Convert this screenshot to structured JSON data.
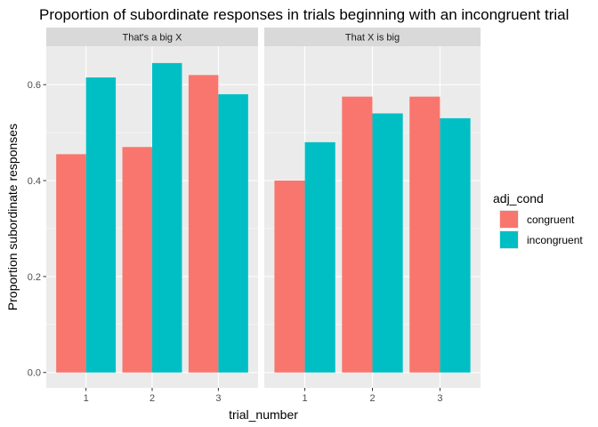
{
  "chart_data": {
    "type": "bar",
    "title": "Proportion of subordinate responses in trials beginning with an incongruent trial",
    "xlabel": "trial_number",
    "ylabel": "Proportion subordinate responses",
    "categories": [
      "1",
      "2",
      "3"
    ],
    "ylim": [
      -0.032,
      0.68
    ],
    "yticks": [
      0.0,
      0.2,
      0.4,
      0.6
    ],
    "ytick_labels": [
      "0.0",
      "0.2",
      "0.4",
      "0.6"
    ],
    "grid": true,
    "legend": {
      "title": "adj_cond",
      "position": "right",
      "entries": [
        "congruent",
        "incongruent"
      ]
    },
    "panels": [
      {
        "strip": "That's a big X",
        "series": [
          {
            "name": "congruent",
            "values": [
              0.455,
              0.47,
              0.62
            ]
          },
          {
            "name": "incongruent",
            "values": [
              0.615,
              0.645,
              0.58
            ]
          }
        ]
      },
      {
        "strip": "That X is big",
        "series": [
          {
            "name": "congruent",
            "values": [
              0.4,
              0.575,
              0.575
            ]
          },
          {
            "name": "incongruent",
            "values": [
              0.48,
              0.54,
              0.53
            ]
          }
        ]
      }
    ]
  },
  "colors": {
    "congruent": "#F8766D",
    "incongruent": "#00BFC4",
    "panel_bg": "#EBEBEB",
    "strip_bg": "#D9D9D9",
    "grid_major": "#FFFFFF"
  }
}
